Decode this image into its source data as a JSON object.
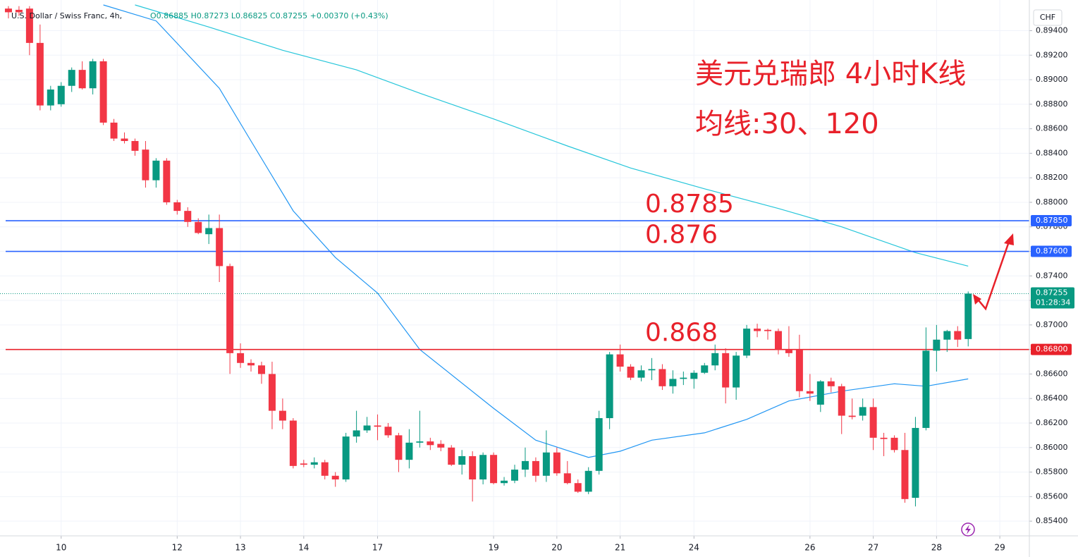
{
  "chart_data": {
    "type": "candlestick",
    "symbol": "U.S. Dollar / Swiss Franc, 4h,",
    "ohlc_header": "O0.86885 H0.87273 L0.86825 C0.87255 +0.00370 (+0.43%)",
    "currency": "CHF",
    "title": "美元兑瑞郎 4小时K线",
    "subtitle": "均线:30、120",
    "up_color": "#089981",
    "down_color": "#f23645",
    "open": [
      0.8958,
      0.8957,
      0.8958,
      0.893,
      0.8879,
      0.888,
      0.8895,
      0.8908,
      0.8893,
      0.8915,
      0.8865,
      0.8852,
      0.885,
      0.8843,
      0.8818,
      0.8834,
      0.88,
      0.8793,
      0.8784,
      0.8774,
      0.8779,
      0.8748,
      0.8677,
      0.8669,
      0.8667,
      0.866,
      0.863,
      0.8622,
      0.8587,
      0.8586,
      0.8588,
      0.8577,
      0.8574,
      0.8609,
      0.8614,
      0.8618,
      0.8617,
      0.861,
      0.859,
      0.8604,
      0.8605,
      0.8603,
      0.86,
      0.8586,
      0.8593,
      0.8574,
      0.8594,
      0.8571,
      0.8573,
      0.8582,
      0.8589,
      0.8577,
      0.8596,
      0.8579,
      0.8571,
      0.8564,
      0.8581,
      0.8624,
      0.8676,
      0.8666,
      0.8657,
      0.8663,
      0.8664,
      0.865,
      0.8656,
      0.8656,
      0.8661,
      0.8667,
      0.8677,
      0.8649,
      0.8675,
      0.8697,
      0.8696,
      0.8695,
      0.868,
      0.868,
      0.8646,
      0.8635,
      0.8654,
      0.865,
      0.8626,
      0.8626,
      0.8633,
      0.8608,
      0.8608,
      0.8598,
      0.8559,
      0.8616,
      0.8679,
      0.8688,
      0.8695,
      0.86885
    ],
    "high": [
      0.896,
      0.896,
      0.896,
      0.8945,
      0.8895,
      0.8898,
      0.891,
      0.8915,
      0.8917,
      0.8917,
      0.8868,
      0.8857,
      0.8852,
      0.885,
      0.8836,
      0.8836,
      0.8802,
      0.8796,
      0.8787,
      0.879,
      0.879,
      0.875,
      0.8685,
      0.8672,
      0.867,
      0.867,
      0.864,
      0.8624,
      0.859,
      0.8592,
      0.859,
      0.858,
      0.8612,
      0.863,
      0.8625,
      0.8627,
      0.862,
      0.8612,
      0.8615,
      0.863,
      0.8608,
      0.8606,
      0.8602,
      0.8598,
      0.8597,
      0.8596,
      0.8596,
      0.8576,
      0.8586,
      0.86,
      0.8592,
      0.8614,
      0.86,
      0.8589,
      0.8574,
      0.8584,
      0.863,
      0.8678,
      0.8684,
      0.8668,
      0.8667,
      0.8673,
      0.8668,
      0.8663,
      0.8662,
      0.8663,
      0.8669,
      0.8684,
      0.8681,
      0.8678,
      0.87,
      0.8701,
      0.8697,
      0.8697,
      0.8699,
      0.8692,
      0.866,
      0.8655,
      0.8657,
      0.8652,
      0.864,
      0.864,
      0.864,
      0.8612,
      0.861,
      0.8612,
      0.8625,
      0.8698,
      0.87,
      0.8696,
      0.8699,
      0.87273
    ],
    "low": [
      0.895,
      0.8952,
      0.892,
      0.8875,
      0.8875,
      0.8878,
      0.889,
      0.8892,
      0.8888,
      0.8863,
      0.885,
      0.8848,
      0.8838,
      0.8812,
      0.8812,
      0.8798,
      0.879,
      0.878,
      0.8774,
      0.8766,
      0.8735,
      0.866,
      0.8665,
      0.8662,
      0.8652,
      0.8615,
      0.8615,
      0.8583,
      0.8584,
      0.8583,
      0.8574,
      0.8568,
      0.8572,
      0.8604,
      0.8612,
      0.8606,
      0.8608,
      0.858,
      0.8583,
      0.86,
      0.8598,
      0.8597,
      0.8585,
      0.8578,
      0.8556,
      0.857,
      0.857,
      0.8569,
      0.8571,
      0.8576,
      0.8572,
      0.8572,
      0.8577,
      0.857,
      0.8563,
      0.8562,
      0.8578,
      0.8615,
      0.8662,
      0.8655,
      0.8654,
      0.8655,
      0.8647,
      0.8644,
      0.8651,
      0.8648,
      0.866,
      0.8663,
      0.8636,
      0.8639,
      0.8673,
      0.869,
      0.8688,
      0.8676,
      0.8674,
      0.8641,
      0.8638,
      0.8629,
      0.8645,
      0.8611,
      0.8623,
      0.8622,
      0.8598,
      0.8593,
      0.8596,
      0.8555,
      0.8552,
      0.8614,
      0.8662,
      0.8678,
      0.8682,
      0.86825
    ],
    "close": [
      0.8955,
      0.8955,
      0.893,
      0.8879,
      0.8892,
      0.8895,
      0.8908,
      0.8893,
      0.8915,
      0.8865,
      0.8852,
      0.885,
      0.8842,
      0.8818,
      0.8834,
      0.88,
      0.8793,
      0.8784,
      0.8775,
      0.8779,
      0.8748,
      0.8677,
      0.8669,
      0.8667,
      0.866,
      0.863,
      0.8622,
      0.8585,
      0.8586,
      0.8588,
      0.8577,
      0.8574,
      0.8609,
      0.8614,
      0.8618,
      0.8617,
      0.861,
      0.859,
      0.8604,
      0.8605,
      0.8602,
      0.86,
      0.8586,
      0.8593,
      0.8574,
      0.8594,
      0.8571,
      0.8573,
      0.8582,
      0.8589,
      0.8577,
      0.8596,
      0.8579,
      0.8571,
      0.8564,
      0.8581,
      0.8624,
      0.8676,
      0.8666,
      0.8657,
      0.8663,
      0.8664,
      0.865,
      0.8656,
      0.8657,
      0.8661,
      0.8667,
      0.8677,
      0.8649,
      0.8675,
      0.8697,
      0.8695,
      0.8695,
      0.868,
      0.8677,
      0.8646,
      0.8644,
      0.8654,
      0.865,
      0.8626,
      0.8625,
      0.8633,
      0.8608,
      0.8607,
      0.8598,
      0.8558,
      0.8616,
      0.8679,
      0.8688,
      0.8695,
      0.8688,
      0.87255
    ],
    "moving_averages": [
      {
        "color": "#26c6da",
        "x": [
          12,
          19,
          26,
          33,
          39,
          46,
          53,
          59,
          66,
          73,
          79,
          86,
          91
        ],
        "values": [
          0.8961,
          0.8943,
          0.8924,
          0.8908,
          0.8889,
          0.8868,
          0.8846,
          0.8828,
          0.8811,
          0.8795,
          0.878,
          0.8759,
          0.8748
        ]
      },
      {
        "color": "#2196f3",
        "x": [
          9,
          14,
          20,
          23,
          27,
          31,
          35,
          39,
          46,
          50,
          55,
          58,
          61,
          66,
          70,
          74,
          79,
          84,
          87,
          91
        ],
        "values": [
          0.8961,
          0.8948,
          0.8893,
          0.885,
          0.8793,
          0.8755,
          0.8726,
          0.868,
          0.8632,
          0.8606,
          0.8592,
          0.8597,
          0.8606,
          0.8612,
          0.8623,
          0.8638,
          0.8646,
          0.8652,
          0.865,
          0.8656
        ]
      }
    ],
    "levels": [
      {
        "value": 0.8785,
        "label": "0.87850",
        "annotation": "0.8785",
        "color": "#2962ff"
      },
      {
        "value": 0.876,
        "label": "0.87600",
        "annotation": "0.876",
        "color": "#2962ff"
      },
      {
        "value": 0.868,
        "label": "0.86800",
        "annotation": "0.868",
        "color": "#e8212a"
      }
    ],
    "last_price": {
      "value": 0.87255,
      "label": "0.87255",
      "countdown": "01:28:34",
      "color": "#089981"
    },
    "xlim": [
      -0.8,
      96.8
    ],
    "ylim": [
      0.8528,
      0.8965
    ],
    "xticks": [
      {
        "value": 5,
        "label": "10"
      },
      {
        "value": 16,
        "label": "12"
      },
      {
        "value": 22,
        "label": "13"
      },
      {
        "value": 28,
        "label": "14"
      },
      {
        "value": 35,
        "label": "17"
      },
      {
        "value": 46,
        "label": "19"
      },
      {
        "value": 52,
        "label": "20"
      },
      {
        "value": 58,
        "label": "21"
      },
      {
        "value": 65,
        "label": "24"
      },
      {
        "value": 76,
        "label": "26"
      },
      {
        "value": 82,
        "label": "27"
      },
      {
        "value": 88,
        "label": "28"
      },
      {
        "value": 94,
        "label": "29"
      }
    ],
    "yticks": [
      {
        "value": 0.854,
        "label": "0.85400"
      },
      {
        "value": 0.856,
        "label": "0.85600"
      },
      {
        "value": 0.858,
        "label": "0.85800"
      },
      {
        "value": 0.86,
        "label": "0.86000"
      },
      {
        "value": 0.862,
        "label": "0.86200"
      },
      {
        "value": 0.864,
        "label": "0.86400"
      },
      {
        "value": 0.866,
        "label": "0.86600"
      },
      {
        "value": 0.868,
        "label": "0.86800"
      },
      {
        "value": 0.87,
        "label": "0.87000"
      },
      {
        "value": 0.872,
        "label": "0.87200"
      },
      {
        "value": 0.874,
        "label": "0.87400"
      },
      {
        "value": 0.876,
        "label": "0.87600"
      },
      {
        "value": 0.878,
        "label": "0.87800"
      },
      {
        "value": 0.88,
        "label": "0.88000"
      },
      {
        "value": 0.882,
        "label": "0.88200"
      },
      {
        "value": 0.884,
        "label": "0.88400"
      },
      {
        "value": 0.886,
        "label": "0.88600"
      },
      {
        "value": 0.888,
        "label": "0.88800"
      },
      {
        "value": 0.89,
        "label": "0.89000"
      },
      {
        "value": 0.892,
        "label": "0.89200"
      },
      {
        "value": 0.894,
        "label": "0.89400"
      }
    ],
    "grid": true
  }
}
